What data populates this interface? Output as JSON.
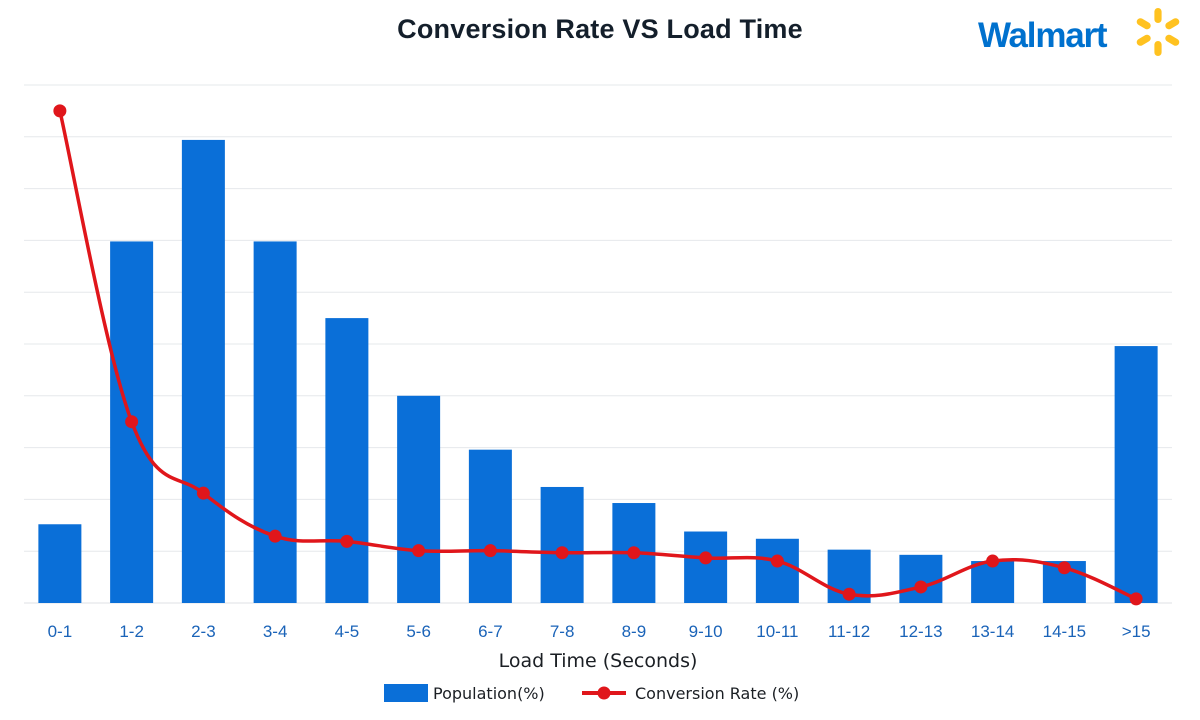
{
  "header": {
    "logo_text": "Walmart"
  },
  "colors": {
    "bar": "#0a6fd8",
    "line": "#e0161b",
    "grid": "#e6e8eb",
    "tick": "#1a63b8",
    "title": "#141f2b",
    "logo": "#0071ce",
    "spark": "#ffc220"
  },
  "chart_data": {
    "type": "bar",
    "title": "Conversion Rate VS Load Time",
    "xlabel": "Load Time (Seconds)",
    "ylabel": "",
    "categories": [
      "0-1",
      "1-2",
      "2-3",
      "3-4",
      "4-5",
      "5-6",
      "6-7",
      "7-8",
      "8-9",
      "9-10",
      "10-11",
      "11-12",
      "12-13",
      "13-14",
      "14-15",
      ">15"
    ],
    "ylim": [
      0,
      100
    ],
    "grid": true,
    "legend_position": "bottom-center",
    "series": [
      {
        "name": "Population(%)",
        "type": "bar",
        "values": [
          15.2,
          69.8,
          89.4,
          69.8,
          55.0,
          40.0,
          29.6,
          22.4,
          19.3,
          13.8,
          12.4,
          10.3,
          9.3,
          8.1,
          8.1,
          49.6
        ]
      },
      {
        "name": "Conversion Rate (%)",
        "type": "line",
        "values": [
          95.0,
          35.0,
          21.2,
          12.9,
          11.9,
          10.1,
          10.1,
          9.7,
          9.7,
          8.7,
          8.1,
          1.7,
          3.1,
          8.1,
          6.8,
          0.8
        ]
      }
    ],
    "legend": [
      "Population(%)",
      "Conversion Rate (%)"
    ]
  }
}
